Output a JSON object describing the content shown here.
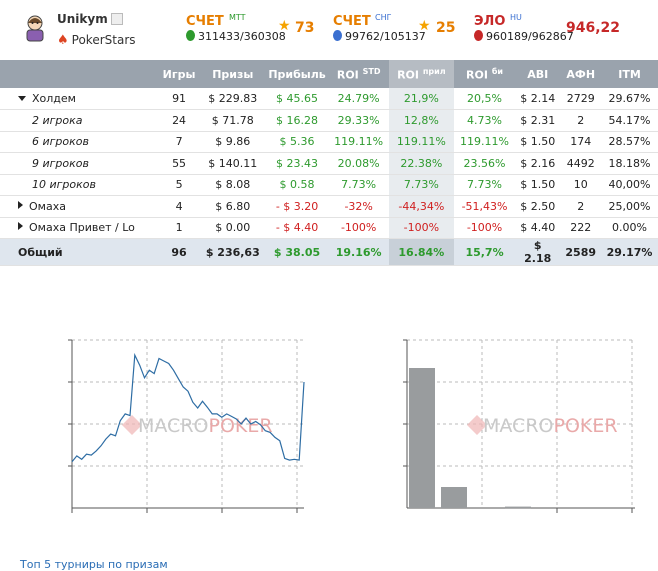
{
  "profile": {
    "username": "Unikym",
    "site": "PokerStars"
  },
  "stats": [
    {
      "label": "СЧЕТ",
      "sup": "MTT",
      "value": "311433/360308",
      "stars": "73",
      "color": "#e67e00",
      "medal_color": "#2e9a2e"
    },
    {
      "label": "СЧЕТ",
      "sup": "СНГ",
      "value": "99762/105137",
      "stars": "25",
      "color": "#e67e00",
      "medal_color": "#3a6fd0"
    },
    {
      "label": "ЭЛО",
      "sup": "HU",
      "value": "960189/962867",
      "elo": "946,22",
      "color": "#c62828",
      "medal_color": "#c62828"
    }
  ],
  "table": {
    "headers": [
      "",
      "Игры",
      "Призы",
      "Прибыль",
      "ROI",
      "ROI",
      "ROI",
      "ABI",
      "АФН",
      "ITM"
    ],
    "header_sups": {
      "roi_std": "STD",
      "roi_pril": "прил",
      "roi_bi": "би"
    },
    "rows": [
      {
        "name": "Холдем",
        "kind": "group-open",
        "games": "91",
        "prizes": "$ 229.83",
        "profit": "$ 45.65",
        "roi_std": "24.79%",
        "roi_pril": "21,9%",
        "roi_bi": "20,5%",
        "abi": "$ 2.14",
        "afn": "2729",
        "itm": "29.67%",
        "sign": "pos"
      },
      {
        "name": "2 игрока",
        "kind": "sub",
        "games": "24",
        "prizes": "$ 71.78",
        "profit": "$ 16.28",
        "roi_std": "29.33%",
        "roi_pril": "12,8%",
        "roi_bi": "4.73%",
        "abi": "$ 2.31",
        "afn": "2",
        "itm": "54.17%",
        "sign": "pos"
      },
      {
        "name": "6 игроков",
        "kind": "sub",
        "games": "7",
        "prizes": "$ 9.86",
        "profit": "$ 5.36",
        "roi_std": "119.11%",
        "roi_pril": "119.11%",
        "roi_bi": "119.11%",
        "abi": "$ 1.50",
        "afn": "174",
        "itm": "28.57%",
        "sign": "pos"
      },
      {
        "name": "9 игроков",
        "kind": "sub",
        "games": "55",
        "prizes": "$ 140.11",
        "profit": "$ 23.43",
        "roi_std": "20.08%",
        "roi_pril": "22.38%",
        "roi_bi": "23.56%",
        "abi": "$ 2.16",
        "afn": "4492",
        "itm": "18.18%",
        "sign": "pos"
      },
      {
        "name": "10 игроков",
        "kind": "sub",
        "games": "5",
        "prizes": "$ 8.08",
        "profit": "$ 0.58",
        "roi_std": "7.73%",
        "roi_pril": "7.73%",
        "roi_bi": "7.73%",
        "abi": "$ 1.50",
        "afn": "10",
        "itm": "40,00%",
        "sign": "pos"
      },
      {
        "name": "Омаха",
        "kind": "group-closed",
        "games": "4",
        "prizes": "$ 6.80",
        "profit": "- $ 3.20",
        "roi_std": "-32%",
        "roi_pril": "-44,34%",
        "roi_bi": "-51,43%",
        "abi": "$ 2.50",
        "afn": "2",
        "itm": "25,00%",
        "sign": "neg"
      },
      {
        "name": "Омаха Привет / Lo",
        "kind": "group-closed",
        "games": "1",
        "prizes": "$ 0.00",
        "profit": "- $ 4.40",
        "roi_std": "-100%",
        "roi_pril": "-100%",
        "roi_bi": "-100%",
        "abi": "$ 4.40",
        "afn": "222",
        "itm": "0.00%",
        "sign": "neg"
      },
      {
        "name": "Общий",
        "kind": "total",
        "games": "96",
        "prizes": "$ 236,63",
        "profit": "$ 38.05",
        "roi_std": "19.16%",
        "roi_pril": "16.84%",
        "roi_bi": "15,7%",
        "abi": "$ 2.18",
        "afn": "2589",
        "itm": "29.17%",
        "sign": "pos"
      }
    ]
  },
  "watermark": {
    "part1": "MACRO",
    "part2": "POKER"
  },
  "chart_data": [
    {
      "type": "line",
      "x": [
        0,
        2,
        4,
        6,
        8,
        10,
        12,
        14,
        16,
        18,
        20,
        22,
        24,
        26,
        28,
        30,
        32,
        34,
        36,
        38,
        40,
        42,
        44,
        46,
        48,
        50,
        52,
        54,
        56,
        58,
        60,
        62,
        64,
        66,
        68,
        70,
        72,
        74,
        76,
        78,
        80,
        82,
        84,
        86,
        88,
        90,
        92,
        94,
        96
      ],
      "y": [
        -5,
        2,
        -2,
        4,
        3,
        8,
        14,
        22,
        28,
        26,
        44,
        52,
        50,
        122,
        110,
        95,
        104,
        100,
        118,
        115,
        112,
        104,
        94,
        84,
        79,
        66,
        59,
        67,
        60,
        52,
        52,
        48,
        52,
        49,
        46,
        40,
        47,
        40,
        43,
        39,
        32,
        30,
        24,
        20,
        -1,
        -3,
        -2,
        -3,
        90
      ],
      "ylim": [
        -60,
        140
      ]
    },
    {
      "type": "bar",
      "values": [
        100,
        15,
        1
      ],
      "ylim": [
        0,
        120
      ]
    }
  ],
  "footer": {
    "text": "Топ 5 турниры по призам"
  }
}
